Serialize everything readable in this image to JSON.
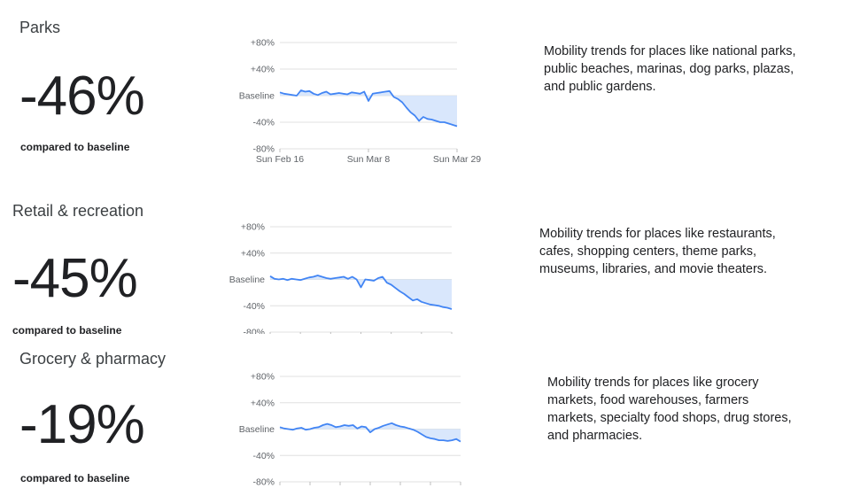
{
  "sections": [
    {
      "title": "Parks",
      "change": "-46%",
      "compared_label": "compared to baseline",
      "description_lines": [
        "Mobility trends for places like national parks,",
        "public beaches, marinas, dog parks, plazas,",
        "and public gardens."
      ]
    },
    {
      "title": "Retail & recreation",
      "change": "-45%",
      "compared_label": "compared to baseline",
      "description_lines": [
        "Mobility trends for places like restaurants,",
        "cafes, shopping centers, theme parks,",
        "museums, libraries, and movie theaters."
      ]
    },
    {
      "title": "Grocery & pharmacy",
      "change": "-19%",
      "compared_label": "compared to baseline",
      "description_lines": [
        "Mobility trends for places like grocery",
        "markets, food warehouses, farmers",
        "markets, specialty food shops, drug stores,",
        "and pharmacies."
      ]
    }
  ],
  "colors": {
    "line": "#4285f4",
    "fill": "#d2e3fc",
    "grid": "#e0e0e0",
    "text": "#202124",
    "tick": "#5f6368"
  },
  "chart_data": [
    {
      "type": "line",
      "ytick_labels": [
        "+80%",
        "+40%",
        "Baseline",
        "-40%",
        "-80%"
      ],
      "yticks": [
        80,
        40,
        0,
        -40,
        -80
      ],
      "ylim": [
        -80,
        80
      ],
      "xtick_labels": [
        "Sun Feb 16",
        "Sun Mar 8",
        "Sun Mar 29"
      ],
      "xtick_index": [
        0,
        21,
        42
      ],
      "x": [
        "Feb 16",
        "Feb 17",
        "Feb 18",
        "Feb 19",
        "Feb 20",
        "Feb 21",
        "Feb 22",
        "Feb 23",
        "Feb 24",
        "Feb 25",
        "Feb 26",
        "Feb 27",
        "Feb 28",
        "Feb 29",
        "Mar 1",
        "Mar 2",
        "Mar 3",
        "Mar 4",
        "Mar 5",
        "Mar 6",
        "Mar 7",
        "Mar 8",
        "Mar 9",
        "Mar 10",
        "Mar 11",
        "Mar 12",
        "Mar 13",
        "Mar 14",
        "Mar 15",
        "Mar 16",
        "Mar 17",
        "Mar 18",
        "Mar 19",
        "Mar 20",
        "Mar 21",
        "Mar 22",
        "Mar 23",
        "Mar 24",
        "Mar 25",
        "Mar 26",
        "Mar 27",
        "Mar 28",
        "Mar 29"
      ],
      "values": [
        5,
        3,
        2,
        1,
        0,
        8,
        6,
        7,
        3,
        1,
        4,
        6,
        2,
        3,
        4,
        3,
        2,
        5,
        4,
        3,
        6,
        -8,
        3,
        4,
        5,
        6,
        7,
        -2,
        -5,
        -10,
        -18,
        -25,
        -30,
        -38,
        -32,
        -35,
        -36,
        -38,
        -40,
        -40,
        -42,
        -44,
        -46
      ]
    },
    {
      "type": "line",
      "ytick_labels": [
        "+80%",
        "+40%",
        "Baseline",
        "-40%",
        "-80%"
      ],
      "yticks": [
        80,
        40,
        0,
        -40,
        -80
      ],
      "ylim": [
        -80,
        80
      ],
      "xtick_labels": [],
      "xtick_index": [
        0,
        7,
        14,
        21,
        28,
        35,
        42
      ],
      "values": [
        5,
        1,
        0,
        1,
        -1,
        1,
        0,
        -1,
        1,
        3,
        4,
        6,
        4,
        2,
        1,
        2,
        3,
        4,
        1,
        4,
        0,
        -12,
        0,
        -1,
        -2,
        2,
        4,
        -5,
        -8,
        -13,
        -18,
        -22,
        -27,
        -32,
        -30,
        -34,
        -36,
        -38,
        -39,
        -40,
        -42,
        -43,
        -45
      ]
    },
    {
      "type": "line",
      "ytick_labels": [
        "+80%",
        "+40%",
        "Baseline",
        "-40%",
        "-80%"
      ],
      "yticks": [
        80,
        40,
        0,
        -40,
        -80
      ],
      "ylim": [
        -80,
        80
      ],
      "xtick_labels": [],
      "xtick_index": [
        0,
        7,
        14,
        21,
        28,
        35,
        42
      ],
      "values": [
        3,
        1,
        0,
        -1,
        1,
        2,
        -1,
        0,
        2,
        3,
        6,
        8,
        6,
        3,
        4,
        6,
        5,
        6,
        1,
        4,
        3,
        -5,
        0,
        2,
        5,
        7,
        9,
        6,
        4,
        3,
        1,
        -1,
        -4,
        -8,
        -12,
        -14,
        -15,
        -17,
        -17,
        -18,
        -17,
        -15,
        -19
      ]
    }
  ]
}
